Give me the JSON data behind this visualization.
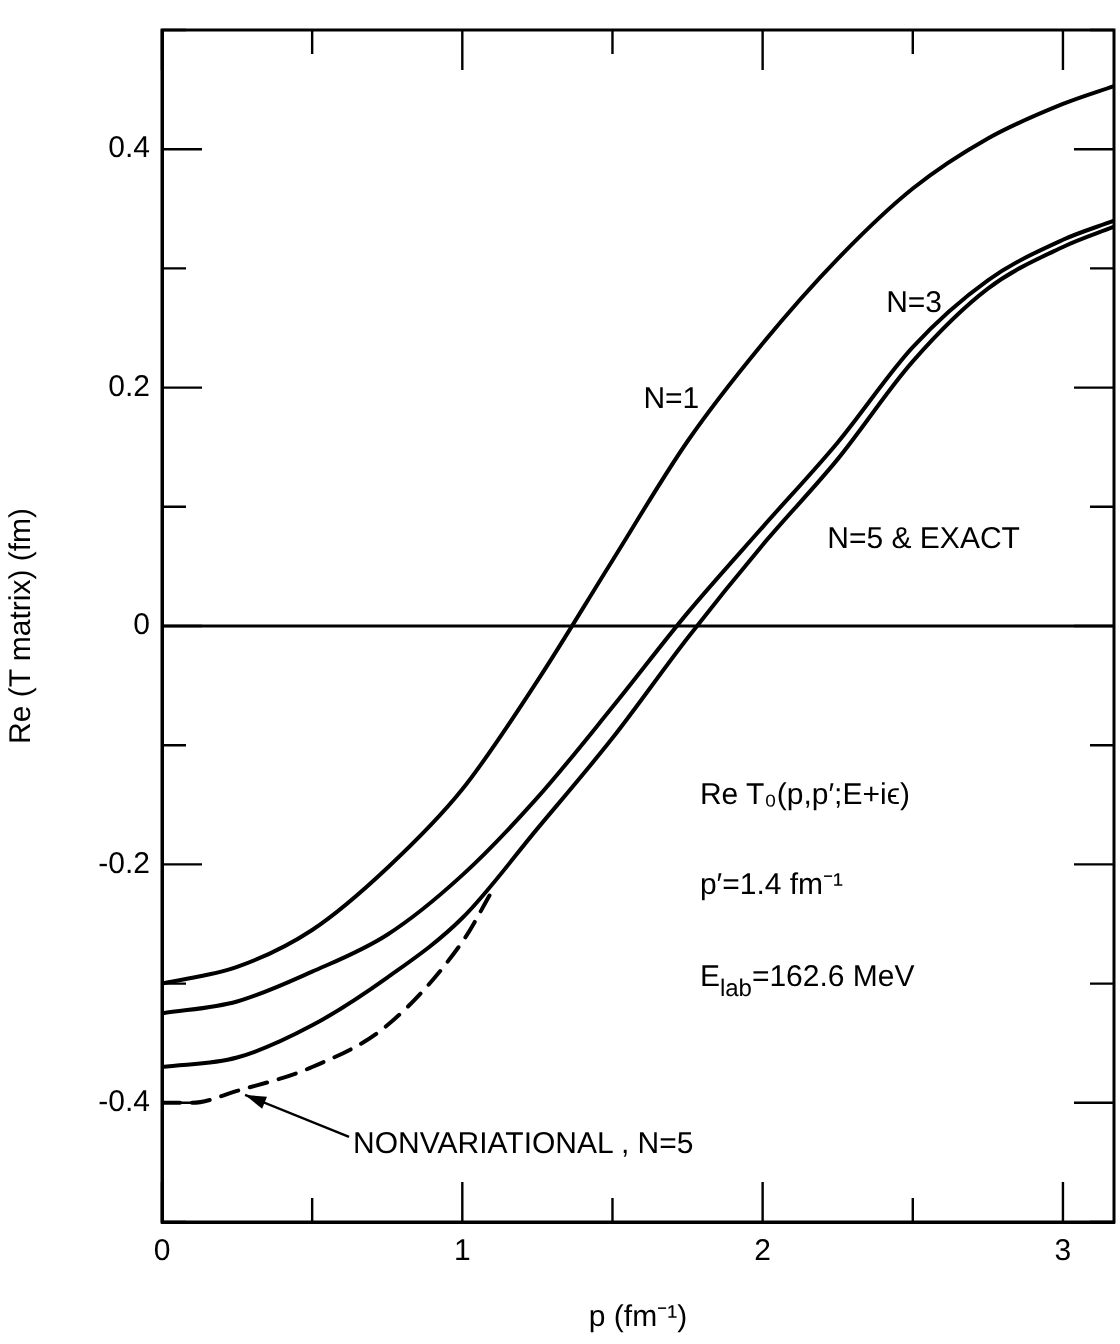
{
  "chart_data": {
    "type": "line",
    "xlabel": "p (fm⁻¹)",
    "ylabel": "Re (T matrix) (fm)",
    "xlim": [
      0,
      3.17
    ],
    "ylim": [
      -0.5,
      0.5
    ],
    "xticks": [
      0,
      {
        "value": 0.5,
        "label": null
      },
      1,
      {
        "value": 1.5,
        "label": null
      },
      2,
      {
        "value": 2.5,
        "label": null
      },
      3
    ],
    "yticks": [
      {
        "value": -0.5,
        "label": null
      },
      {
        "value": -0.4,
        "label": "-0.4"
      },
      {
        "value": -0.3,
        "label": null
      },
      {
        "value": -0.2,
        "label": "-0.2"
      },
      {
        "value": -0.1,
        "label": null
      },
      0,
      {
        "value": 0.1,
        "label": null
      },
      0.2,
      {
        "value": 0.3,
        "label": null
      },
      0.4,
      {
        "value": 0.5,
        "label": null
      }
    ],
    "grid": false,
    "legend": false,
    "marker": "none",
    "line_style": "solid",
    "x": [
      0,
      0.25,
      0.5,
      0.75,
      1.0,
      1.25,
      1.5,
      1.75,
      2.0,
      2.25,
      2.5,
      2.75,
      3.0,
      3.17
    ],
    "series": [
      {
        "color": "#000000",
        "values": [
          -0.3,
          -0.286,
          -0.255,
          -0.203,
          -0.137,
          -0.046,
          0.055,
          0.155,
          0.237,
          0.308,
          0.367,
          0.409,
          0.438,
          0.453
        ]
      },
      {
        "color": "#000000",
        "values": [
          -0.325,
          -0.315,
          -0.29,
          -0.259,
          -0.209,
          -0.144,
          -0.068,
          0.011,
          0.083,
          0.154,
          0.234,
          0.29,
          0.324,
          0.34
        ]
      },
      {
        "color": "#000000",
        "values": [
          -0.37,
          -0.362,
          -0.335,
          -0.295,
          -0.245,
          -0.17,
          -0.094,
          -0.01,
          0.068,
          0.14,
          0.222,
          0.283,
          0.318,
          0.335
        ]
      },
      {
        "color": "#000000",
        "line_style": "dashed",
        "x": [
          0,
          0.1,
          0.25,
          0.5,
          0.75,
          1.0,
          1.1
        ],
        "values": [
          -0.4,
          -0.4,
          -0.39,
          -0.37,
          -0.335,
          -0.265,
          -0.222
        ]
      }
    ],
    "ref_lines": [
      {
        "axis": "y",
        "value": 0,
        "color": "#000000"
      }
    ],
    "annotations": [
      "N=1",
      "N=3",
      "N=5 & EXACT",
      {
        "text": "NONVARIATIONAL , N=5",
        "x": 0.25,
        "y": -0.39
      },
      "Re T₀(p,p′;E+iϵ)",
      "p′=1.4 fm⁻¹",
      "E$_{lab}$=162.6 MeV"
    ]
  }
}
